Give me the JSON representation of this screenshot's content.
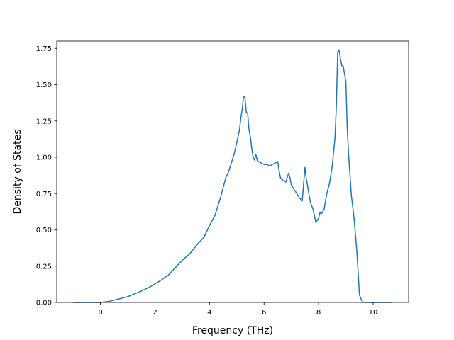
{
  "chart_data": {
    "type": "line",
    "title": "",
    "xlabel": "Frequency (THz)",
    "ylabel": "Density of States",
    "xlim": [
      -1.6,
      11.3
    ],
    "ylim": [
      0,
      1.8
    ],
    "xticks": [
      0,
      2,
      4,
      6,
      8,
      10
    ],
    "xtick_labels": [
      "0",
      "2",
      "4",
      "6",
      "8",
      "10"
    ],
    "yticks": [
      0,
      0.25,
      0.5,
      0.75,
      1.0,
      1.25,
      1.5,
      1.75
    ],
    "ytick_labels": [
      "0.00",
      "0.25",
      "0.50",
      "0.75",
      "1.00",
      "1.25",
      "1.50",
      "1.75"
    ],
    "grid": false,
    "line_color": "#1f77b4",
    "series": [
      {
        "x": [
          -1.0,
          -0.5,
          0.0,
          0.3,
          0.6,
          1.0,
          1.4,
          1.8,
          2.2,
          2.5,
          2.6,
          2.8,
          3.0,
          3.3,
          3.6,
          3.8,
          4.0,
          4.2,
          4.4,
          4.5,
          4.6,
          4.7,
          4.8,
          4.9,
          5.0,
          5.1,
          5.15,
          5.2,
          5.25,
          5.3,
          5.35,
          5.4,
          5.45,
          5.5,
          5.55,
          5.6,
          5.65,
          5.7,
          5.75,
          5.8,
          5.9,
          6.0,
          6.1,
          6.2,
          6.3,
          6.4,
          6.5,
          6.55,
          6.6,
          6.7,
          6.8,
          6.9,
          6.95,
          7.0,
          7.1,
          7.2,
          7.3,
          7.4,
          7.5,
          7.55,
          7.6,
          7.65,
          7.7,
          7.8,
          7.9,
          8.0,
          8.05,
          8.1,
          8.2,
          8.3,
          8.4,
          8.5,
          8.6,
          8.65,
          8.7,
          8.75,
          8.8,
          8.85,
          8.9,
          9.0,
          9.05,
          9.1,
          9.15,
          9.2,
          9.3,
          9.4,
          9.5,
          9.6,
          9.7,
          9.8,
          9.9,
          10.0,
          10.7
        ],
        "y": [
          0.0,
          0.0,
          0.0,
          0.007,
          0.02,
          0.04,
          0.07,
          0.105,
          0.15,
          0.19,
          0.21,
          0.25,
          0.29,
          0.34,
          0.41,
          0.45,
          0.53,
          0.6,
          0.72,
          0.79,
          0.86,
          0.9,
          0.96,
          1.02,
          1.1,
          1.19,
          1.27,
          1.33,
          1.42,
          1.41,
          1.31,
          1.3,
          1.19,
          1.14,
          1.06,
          1.0,
          0.98,
          1.02,
          0.98,
          0.97,
          0.96,
          0.95,
          0.95,
          0.94,
          0.95,
          0.96,
          0.97,
          0.91,
          0.86,
          0.84,
          0.83,
          0.89,
          0.86,
          0.81,
          0.78,
          0.75,
          0.72,
          0.7,
          0.93,
          0.85,
          0.8,
          0.74,
          0.69,
          0.64,
          0.55,
          0.58,
          0.62,
          0.61,
          0.64,
          0.75,
          0.82,
          0.94,
          1.13,
          1.35,
          1.72,
          1.74,
          1.68,
          1.63,
          1.63,
          1.52,
          1.2,
          1.02,
          0.88,
          0.74,
          0.58,
          0.36,
          0.05,
          0.005,
          0.0,
          0.0,
          0.0,
          0.0,
          0.0
        ]
      }
    ]
  }
}
